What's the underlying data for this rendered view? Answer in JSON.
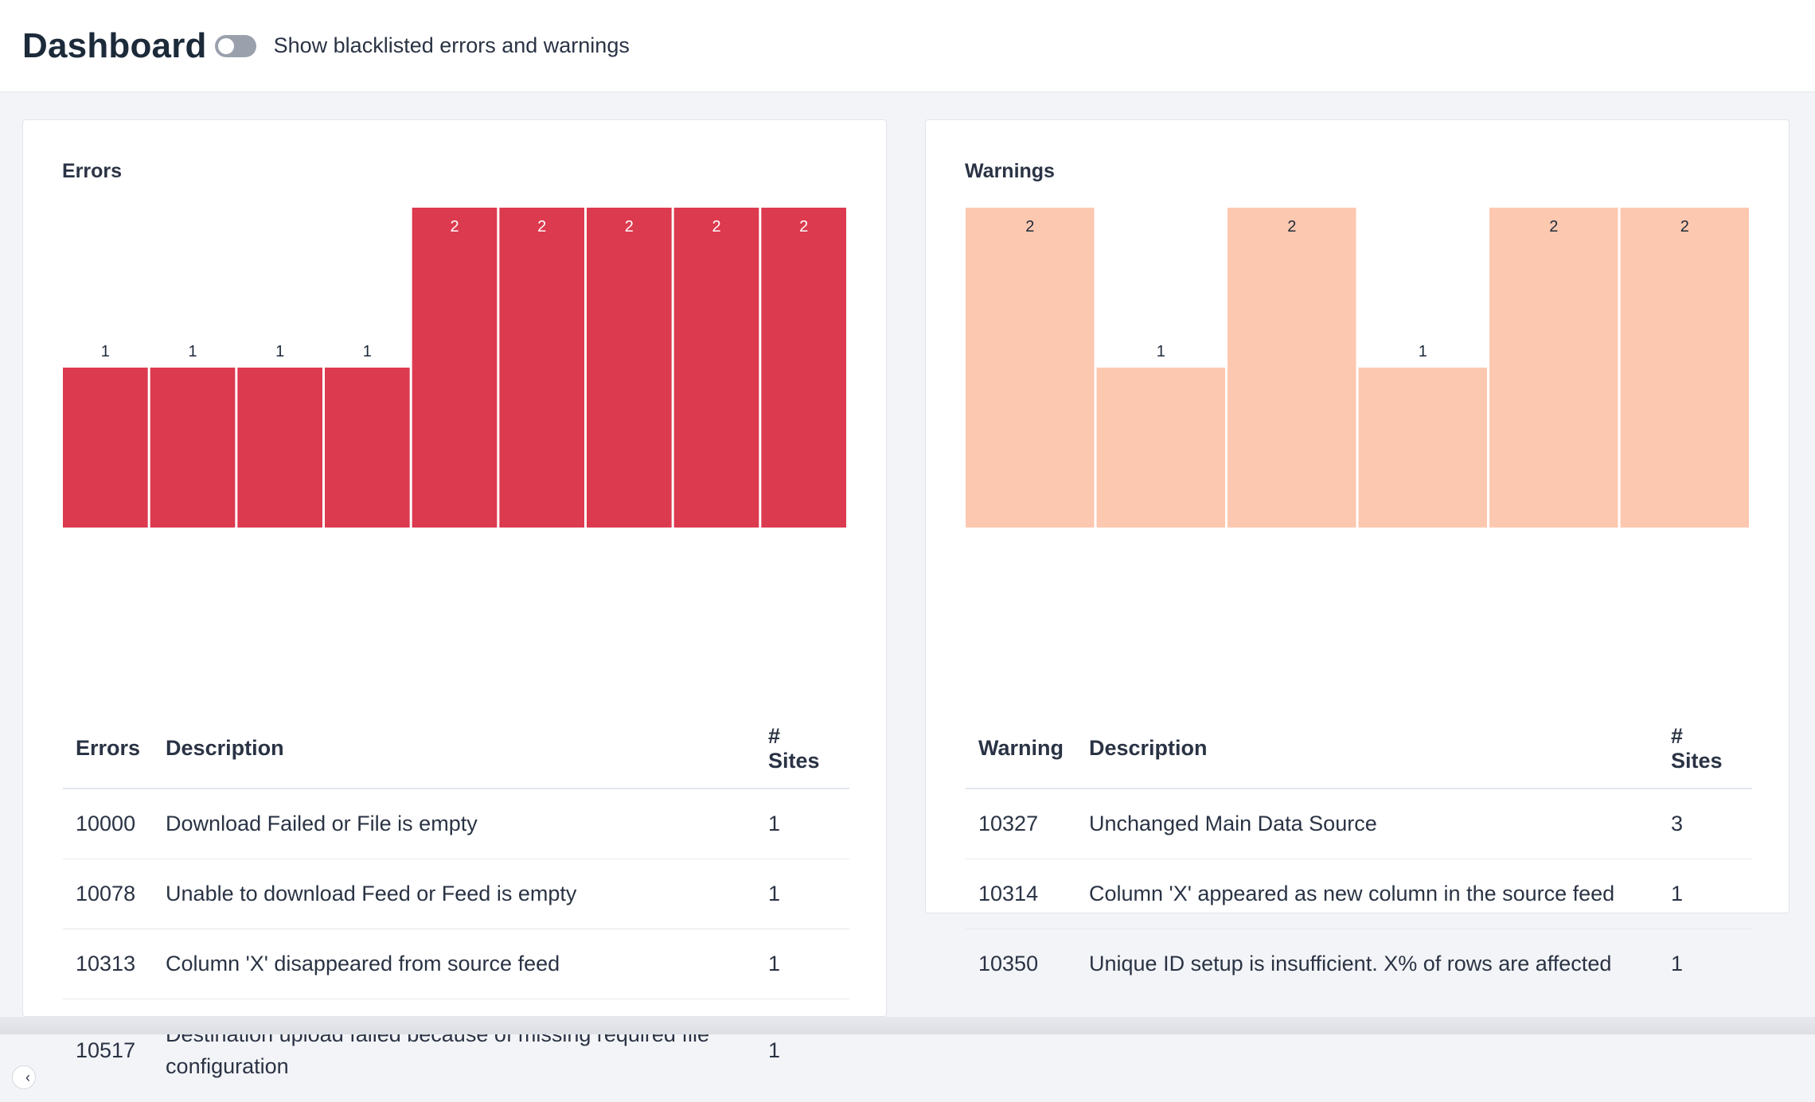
{
  "header": {
    "title": "Dashboard",
    "toggle_label": "Show blacklisted errors and warnings",
    "toggle_on": false
  },
  "errors": {
    "title": "Errors",
    "table_headers": [
      "Errors",
      "Description",
      "# Sites"
    ],
    "rows": [
      {
        "code": "10000",
        "description": "Download Failed or File is empty",
        "sites": "1"
      },
      {
        "code": "10078",
        "description": "Unable to download Feed or Feed is empty",
        "sites": "1"
      },
      {
        "code": "10313",
        "description": "Column 'X' disappeared from source feed",
        "sites": "1"
      },
      {
        "code": "10517",
        "description": "Destination upload failed because of missing required file configuration",
        "sites": "1"
      }
    ]
  },
  "warnings": {
    "title": "Warnings",
    "table_headers": [
      "Warning",
      "Description",
      "# Sites"
    ],
    "rows": [
      {
        "code": "10327",
        "description": "Unchanged Main Data Source",
        "sites": "3"
      },
      {
        "code": "10314",
        "description": "Column 'X' appeared as new column in the source feed",
        "sites": "1"
      },
      {
        "code": "10350",
        "description": "Unique ID setup is insufficient. X% of rows are affected",
        "sites": "1"
      }
    ]
  },
  "chart_data": [
    {
      "type": "bar",
      "title": "Errors",
      "values": [
        1,
        1,
        1,
        1,
        2,
        2,
        2,
        2,
        2
      ],
      "ylim": [
        0,
        2
      ],
      "color": "#dc3a4f",
      "label_color_inside": "#ffffff",
      "label_color_outside": "#1c2a3a"
    },
    {
      "type": "bar",
      "title": "Warnings",
      "values": [
        2,
        1,
        2,
        1,
        2,
        2
      ],
      "ylim": [
        0,
        2
      ],
      "color": "#fdc8b0",
      "label_color_inside": "#1c2a3a",
      "label_color_outside": "#1c2a3a"
    }
  ]
}
